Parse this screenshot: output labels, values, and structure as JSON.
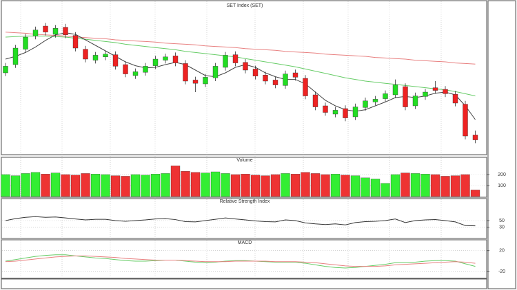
{
  "chart_data": [
    {
      "type": "candlestick",
      "title": "SET Index (SET)",
      "ylim": [
        1430,
        1700
      ],
      "grid": true,
      "up_color": "#22dd22",
      "down_color": "#ee2222",
      "open": [
        1575,
        1590,
        1618,
        1642,
        1660,
        1645,
        1658,
        1643,
        1618,
        1598,
        1604,
        1608,
        1590,
        1570,
        1576,
        1588,
        1598,
        1606,
        1592,
        1562,
        1555,
        1566,
        1585,
        1608,
        1594,
        1582,
        1571,
        1562,
        1552,
        1575,
        1565,
        1535,
        1515,
        1500,
        1510,
        1495,
        1512,
        1522,
        1528,
        1535,
        1550,
        1515,
        1532,
        1548,
        1545,
        1536,
        1518,
        1462
      ],
      "high": [
        1593,
        1626,
        1646,
        1659,
        1666,
        1662,
        1664,
        1649,
        1624,
        1613,
        1615,
        1614,
        1596,
        1583,
        1593,
        1606,
        1610,
        1612,
        1598,
        1568,
        1573,
        1593,
        1613,
        1614,
        1600,
        1588,
        1577,
        1568,
        1579,
        1581,
        1571,
        1541,
        1521,
        1513,
        1516,
        1519,
        1530,
        1533,
        1543,
        1563,
        1556,
        1539,
        1546,
        1560,
        1551,
        1542,
        1524,
        1470
      ],
      "low": [
        1569,
        1584,
        1612,
        1636,
        1643,
        1639,
        1638,
        1614,
        1594,
        1592,
        1598,
        1581,
        1567,
        1564,
        1570,
        1582,
        1592,
        1587,
        1554,
        1540,
        1549,
        1560,
        1579,
        1587,
        1574,
        1563,
        1554,
        1547,
        1546,
        1561,
        1527,
        1507,
        1497,
        1494,
        1487,
        1489,
        1506,
        1516,
        1522,
        1529,
        1507,
        1509,
        1526,
        1537,
        1531,
        1514,
        1454,
        1447
      ],
      "close": [
        1587,
        1620,
        1640,
        1653,
        1649,
        1656,
        1644,
        1620,
        1600,
        1607,
        1609,
        1587,
        1573,
        1577,
        1587,
        1600,
        1604,
        1593,
        1560,
        1556,
        1567,
        1587,
        1607,
        1593,
        1580,
        1569,
        1560,
        1553,
        1573,
        1567,
        1533,
        1513,
        1503,
        1507,
        1493,
        1513,
        1524,
        1527,
        1537,
        1553,
        1513,
        1533,
        1540,
        1543,
        1537,
        1520,
        1460,
        1453
      ],
      "series": [
        {
          "color": "#e88080",
          "values": [
            1649,
            1648,
            1647,
            1645,
            1644,
            1643,
            1642,
            1640,
            1639,
            1638,
            1637,
            1635,
            1634,
            1633,
            1632,
            1631,
            1629,
            1628,
            1627,
            1626,
            1624,
            1623,
            1622,
            1621,
            1619,
            1618,
            1617,
            1616,
            1614,
            1613,
            1612,
            1611,
            1609,
            1608,
            1607,
            1606,
            1605,
            1603,
            1602,
            1601,
            1600,
            1598,
            1597,
            1596,
            1595,
            1593,
            1592,
            1591
          ]
        },
        {
          "color": "#66cc66",
          "values": [
            1640,
            1641,
            1642,
            1642,
            1642,
            1641,
            1640,
            1638,
            1636,
            1634,
            1632,
            1630,
            1627,
            1625,
            1623,
            1621,
            1619,
            1617,
            1614,
            1612,
            1610,
            1608,
            1606,
            1604,
            1601,
            1598,
            1595,
            1592,
            1589,
            1586,
            1582,
            1578,
            1574,
            1570,
            1566,
            1563,
            1560,
            1558,
            1556,
            1554,
            1552,
            1550,
            1548,
            1546,
            1544,
            1541,
            1537,
            1533
          ]
        },
        {
          "color": "#444444",
          "values": [
            1600,
            1605,
            1612,
            1622,
            1634,
            1644,
            1648,
            1645,
            1635,
            1625,
            1615,
            1605,
            1595,
            1588,
            1584,
            1585,
            1590,
            1594,
            1590,
            1580,
            1570,
            1568,
            1575,
            1585,
            1590,
            1585,
            1575,
            1568,
            1563,
            1563,
            1555,
            1540,
            1525,
            1515,
            1508,
            1505,
            1508,
            1515,
            1522,
            1530,
            1532,
            1530,
            1533,
            1538,
            1540,
            1535,
            1515,
            1490
          ]
        }
      ]
    },
    {
      "type": "bar",
      "title": "Volume",
      "ylim": [
        0,
        300
      ],
      "yticks": [
        100,
        200
      ],
      "grid": true,
      "up_color": "#33ee33",
      "down_color": "#ee3333",
      "values": [
        200,
        190,
        210,
        220,
        205,
        215,
        200,
        195,
        210,
        205,
        200,
        190,
        185,
        200,
        195,
        205,
        210,
        280,
        230,
        220,
        215,
        225,
        210,
        200,
        205,
        195,
        190,
        200,
        210,
        205,
        220,
        210,
        200,
        205,
        195,
        190,
        170,
        160,
        120,
        200,
        215,
        210,
        205,
        200,
        185,
        190,
        200,
        60
      ]
    },
    {
      "type": "line",
      "title": "Relative Strength Index",
      "ylim": [
        0,
        100
      ],
      "yticks": [
        30,
        50
      ],
      "grid": true,
      "series": [
        {
          "color": "#333333",
          "values": [
            50,
            56,
            60,
            62,
            60,
            61,
            58,
            55,
            52,
            54,
            54,
            50,
            48,
            50,
            52,
            55,
            56,
            53,
            47,
            46,
            50,
            54,
            58,
            55,
            52,
            49,
            47,
            46,
            52,
            50,
            43,
            40,
            38,
            40,
            37,
            44,
            47,
            48,
            50,
            55,
            44,
            50,
            52,
            53,
            50,
            46,
            35,
            34
          ]
        }
      ]
    },
    {
      "type": "line",
      "title": "MACD",
      "ylim": [
        -30,
        30
      ],
      "yticks": [
        -20,
        20
      ],
      "grid": true,
      "series": [
        {
          "color": "#66cc66",
          "values": [
            0,
            3,
            6,
            9,
            11,
            12,
            12,
            10,
            8,
            6,
            5,
            3,
            1,
            0,
            0,
            1,
            2,
            2,
            0,
            -2,
            -3,
            -2,
            0,
            1,
            1,
            0,
            -1,
            -2,
            -2,
            -2,
            -4,
            -7,
            -10,
            -12,
            -13,
            -12,
            -10,
            -8,
            -6,
            -3,
            -3,
            -2,
            0,
            1,
            1,
            0,
            -5,
            -10
          ]
        },
        {
          "color": "#e88080",
          "values": [
            -1,
            0,
            2,
            4,
            6,
            8,
            9,
            10,
            10,
            9,
            8,
            7,
            5,
            4,
            3,
            2,
            2,
            2,
            1,
            0,
            -1,
            -1,
            -1,
            0,
            0,
            0,
            0,
            -1,
            -1,
            -1,
            -2,
            -3,
            -5,
            -7,
            -9,
            -10,
            -10,
            -10,
            -9,
            -7,
            -6,
            -5,
            -4,
            -3,
            -2,
            -1,
            -2,
            -4
          ]
        }
      ]
    }
  ]
}
